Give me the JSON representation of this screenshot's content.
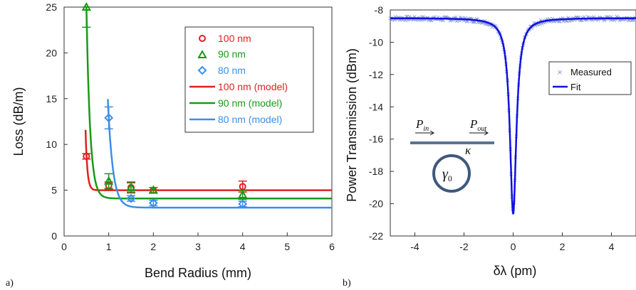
{
  "figure": {
    "panel_a": "a)",
    "panel_b": "b)"
  },
  "chart_data": [
    {
      "type": "scatter",
      "xlabel": "Bend Radius (mm)",
      "ylabel": "Loss (dB/m)",
      "xlim": [
        0,
        6
      ],
      "ylim": [
        0,
        25
      ],
      "xticks": [
        "0",
        "1",
        "2",
        "3",
        "4",
        "5",
        "6"
      ],
      "yticks": [
        "0",
        "5",
        "10",
        "15",
        "20",
        "25"
      ],
      "grid": false,
      "legend_position": "top-right",
      "colors": {
        "100": "#e02020",
        "90": "#179a17",
        "80": "#3b8fe8"
      },
      "series": [
        {
          "name": "100 nm",
          "marker": "circle",
          "color": "#e02020",
          "x": [
            0.5,
            1,
            1.5,
            2,
            4
          ],
          "y": [
            8.7,
            5.5,
            5.3,
            5.0,
            5.4
          ],
          "err": [
            0.3,
            0.4,
            0.6,
            0.3,
            0.6
          ]
        },
        {
          "name": "90 nm",
          "marker": "triangle",
          "color": "#179a17",
          "x": [
            0.5,
            1,
            1.5,
            2,
            4
          ],
          "y": [
            25,
            6.0,
            5.3,
            5.0,
            4.5
          ],
          "err": [
            2.2,
            0.8,
            0.5,
            0.3,
            0.5
          ]
        },
        {
          "name": "80 nm",
          "marker": "diamond",
          "color": "#3b8fe8",
          "x": [
            1,
            1.5,
            2,
            4
          ],
          "y": [
            12.9,
            4.1,
            3.6,
            3.5
          ],
          "err": [
            1.2,
            0.3,
            0.3,
            0.3
          ]
        }
      ],
      "models": [
        {
          "name": "100 nm (model)",
          "color": "#e02020",
          "floor": 5.0,
          "x0": 0.5,
          "y0": 9.0,
          "k": 25,
          "width": 2.5
        },
        {
          "name": "90 nm (model)",
          "color": "#179a17",
          "floor": 4.1,
          "x0": 0.5,
          "y0": 25.0,
          "k": 12,
          "width": 2.5
        },
        {
          "name": "80 nm (model)",
          "color": "#3b8fe8",
          "floor": 3.1,
          "x0": 1.0,
          "y0": 13.0,
          "k": 9,
          "width": 2.5
        }
      ]
    },
    {
      "type": "line",
      "xlabel": "δλ (pm)",
      "ylabel": "Power Transmission (dBm)",
      "xlim": [
        -5,
        5
      ],
      "ylim": [
        -22,
        -8
      ],
      "xticks": [
        "-4",
        "-2",
        "0",
        "2",
        "4"
      ],
      "yticks": [
        "-8",
        "-10",
        "-12",
        "-14",
        "-16",
        "-18",
        "-20",
        "-22"
      ],
      "grid": false,
      "legend_position": "top-right",
      "series": [
        {
          "name": "Measured",
          "marker": "x",
          "color": "#8a9bd6"
        },
        {
          "name": "Fit",
          "line": "solid",
          "color": "#1010e0"
        }
      ],
      "lorentzian": {
        "baseline": -8.5,
        "min": -20.6,
        "center": 0,
        "hwhm": 0.16
      },
      "inset": {
        "p_in": "P",
        "p_in_sub": "in",
        "p_out": "P",
        "p_out_sub": "out",
        "kappa": "κ",
        "gamma": "γ",
        "gamma_sub": "0"
      }
    }
  ]
}
